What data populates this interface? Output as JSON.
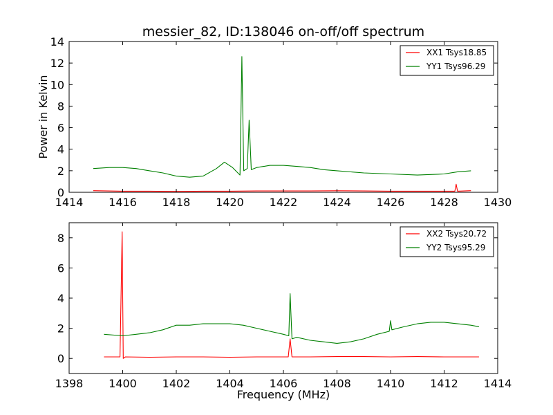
{
  "chart_data": [
    {
      "type": "line",
      "title": "messier_82, ID:138046 on-off/off spectrum",
      "xlabel": "",
      "ylabel": "Power in Kelvin",
      "xlim": [
        1414,
        1430
      ],
      "ylim": [
        0,
        14
      ],
      "xticks": [
        1414,
        1416,
        1418,
        1420,
        1422,
        1424,
        1426,
        1428,
        1430
      ],
      "yticks": [
        0,
        2,
        4,
        6,
        8,
        10,
        12,
        14
      ],
      "legend_position": "top-right",
      "grid": false,
      "series": [
        {
          "name": "XX1 Tsys18.85",
          "color": "#ff0000",
          "x": [
            1414.9,
            1416,
            1417,
            1418,
            1419,
            1420,
            1421,
            1422,
            1423,
            1424,
            1425,
            1426,
            1427,
            1428,
            1428.4,
            1428.45,
            1428.5,
            1429
          ],
          "y": [
            0.15,
            0.1,
            0.1,
            0.08,
            0.1,
            0.1,
            0.12,
            0.12,
            0.12,
            0.14,
            0.12,
            0.1,
            0.1,
            0.1,
            0.1,
            0.75,
            0.1,
            0.15
          ]
        },
        {
          "name": "YY1 Tsys96.29",
          "color": "#008000",
          "x": [
            1414.9,
            1415.5,
            1416,
            1416.5,
            1417,
            1417.5,
            1418,
            1418.5,
            1419,
            1419.5,
            1419.8,
            1420.1,
            1420.38,
            1420.45,
            1420.52,
            1420.65,
            1420.72,
            1420.8,
            1421,
            1421.5,
            1422,
            1422.5,
            1423,
            1423.5,
            1424,
            1425,
            1426,
            1427,
            1428,
            1428.5,
            1429
          ],
          "y": [
            2.2,
            2.3,
            2.3,
            2.2,
            2.0,
            1.8,
            1.5,
            1.4,
            1.5,
            2.2,
            2.8,
            2.3,
            1.6,
            12.6,
            2.0,
            2.2,
            6.7,
            2.1,
            2.3,
            2.5,
            2.5,
            2.4,
            2.3,
            2.1,
            2.0,
            1.8,
            1.7,
            1.6,
            1.7,
            1.9,
            2.0
          ]
        }
      ]
    },
    {
      "type": "line",
      "title": "",
      "xlabel": "Frequency (MHz)",
      "ylabel": "",
      "xlim": [
        1398,
        1414
      ],
      "ylim": [
        -1,
        9
      ],
      "xticks": [
        1398,
        1400,
        1402,
        1404,
        1406,
        1408,
        1410,
        1412,
        1414
      ],
      "yticks": [
        0,
        2,
        4,
        6,
        8
      ],
      "legend_position": "top-right",
      "grid": false,
      "series": [
        {
          "name": "XX2 Tsys20.72",
          "color": "#ff0000",
          "x": [
            1399.3,
            1399.9,
            1399.98,
            1400.02,
            1400.1,
            1401,
            1402,
            1403,
            1404,
            1405,
            1406,
            1406.18,
            1406.25,
            1406.32,
            1407,
            1408,
            1409,
            1410,
            1411,
            1412,
            1413,
            1413.3
          ],
          "y": [
            0.1,
            0.1,
            8.4,
            0.0,
            0.1,
            0.08,
            0.1,
            0.1,
            0.08,
            0.1,
            0.1,
            0.1,
            1.3,
            0.1,
            0.1,
            0.12,
            0.12,
            0.1,
            0.12,
            0.1,
            0.1,
            0.1
          ]
        },
        {
          "name": "YY2 Tsys95.29",
          "color": "#008000",
          "x": [
            1399.3,
            1400,
            1400.5,
            1401,
            1401.5,
            1402,
            1402.5,
            1403,
            1403.5,
            1404,
            1404.5,
            1405,
            1405.5,
            1406,
            1406.2,
            1406.25,
            1406.32,
            1406.5,
            1407,
            1407.5,
            1408,
            1408.5,
            1409,
            1409.5,
            1409.95,
            1410,
            1410.05,
            1410.5,
            1411,
            1411.5,
            1412,
            1412.5,
            1413,
            1413.3
          ],
          "y": [
            1.6,
            1.5,
            1.6,
            1.7,
            1.9,
            2.2,
            2.2,
            2.3,
            2.3,
            2.3,
            2.2,
            2.0,
            1.8,
            1.6,
            1.5,
            4.3,
            1.3,
            1.4,
            1.2,
            1.1,
            1.0,
            1.1,
            1.3,
            1.6,
            1.8,
            2.5,
            1.9,
            2.1,
            2.3,
            2.4,
            2.4,
            2.3,
            2.2,
            2.1
          ]
        }
      ]
    }
  ]
}
